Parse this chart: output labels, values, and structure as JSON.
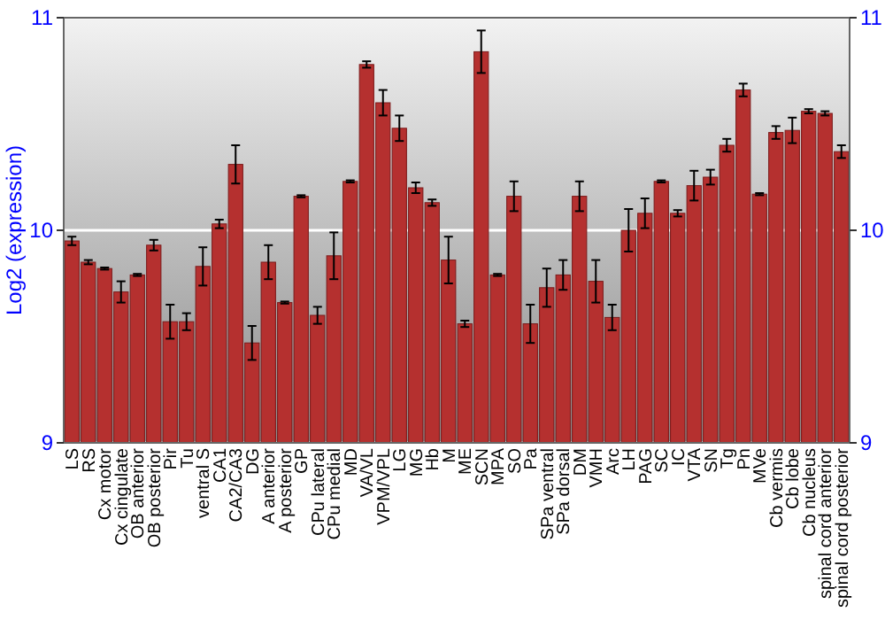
{
  "chart_data": {
    "type": "bar",
    "ylabel": "Log2 (expression)",
    "categories": [
      "LS",
      "RS",
      "Cx motor",
      "Cx cingulate",
      "OB anterior",
      "OB posterior",
      "Pir",
      "Tu",
      "ventral S",
      "CA1",
      "CA2/CA3",
      "DG",
      "A anterior",
      "A posterior",
      "GP",
      "CPu lateral",
      "CPu medial",
      "MD",
      "VA/VL",
      "VPM/VPL",
      "LG",
      "MG",
      "Hb",
      "M",
      "ME",
      "SCN",
      "MPA",
      "SO",
      "Pa",
      "SPa ventral",
      "SPa dorsal",
      "DM",
      "VMH",
      "Arc",
      "LH",
      "PAG",
      "SC",
      "IC",
      "VTA",
      "SN",
      "Tg",
      "Pn",
      "MVe",
      "Cb vermis",
      "Cb lobe",
      "Cb nucleus",
      "spinal cord anterior",
      "spinal cord posterior"
    ],
    "values": [
      9.95,
      9.85,
      9.82,
      9.71,
      9.79,
      9.93,
      9.57,
      9.57,
      9.83,
      10.03,
      10.31,
      9.47,
      9.85,
      9.66,
      10.16,
      9.6,
      9.88,
      10.23,
      10.78,
      10.6,
      10.48,
      10.2,
      10.13,
      9.86,
      9.56,
      10.84,
      9.79,
      10.16,
      9.56,
      9.73,
      9.79,
      10.16,
      9.76,
      9.59,
      10.0,
      10.08,
      10.23,
      10.08,
      10.21,
      10.25,
      10.4,
      10.66,
      10.17,
      10.46,
      10.47,
      10.56,
      10.55,
      10.37
    ],
    "errors": [
      0.02,
      0.01,
      0.005,
      0.05,
      0.005,
      0.025,
      0.08,
      0.04,
      0.09,
      0.02,
      0.09,
      0.08,
      0.08,
      0.005,
      0.005,
      0.04,
      0.11,
      0.005,
      0.015,
      0.06,
      0.06,
      0.025,
      0.015,
      0.11,
      0.015,
      0.1,
      0.005,
      0.07,
      0.09,
      0.09,
      0.07,
      0.07,
      0.1,
      0.06,
      0.1,
      0.07,
      0.005,
      0.015,
      0.07,
      0.035,
      0.03,
      0.03,
      0.005,
      0.03,
      0.06,
      0.01,
      0.01,
      0.03
    ],
    "color": "#b5302f",
    "ylim": [
      9,
      11
    ],
    "yticks": [
      9,
      10,
      11
    ],
    "y2lim": [
      9,
      11
    ],
    "y2ticks": [
      9,
      10,
      11
    ],
    "grid": "y"
  }
}
